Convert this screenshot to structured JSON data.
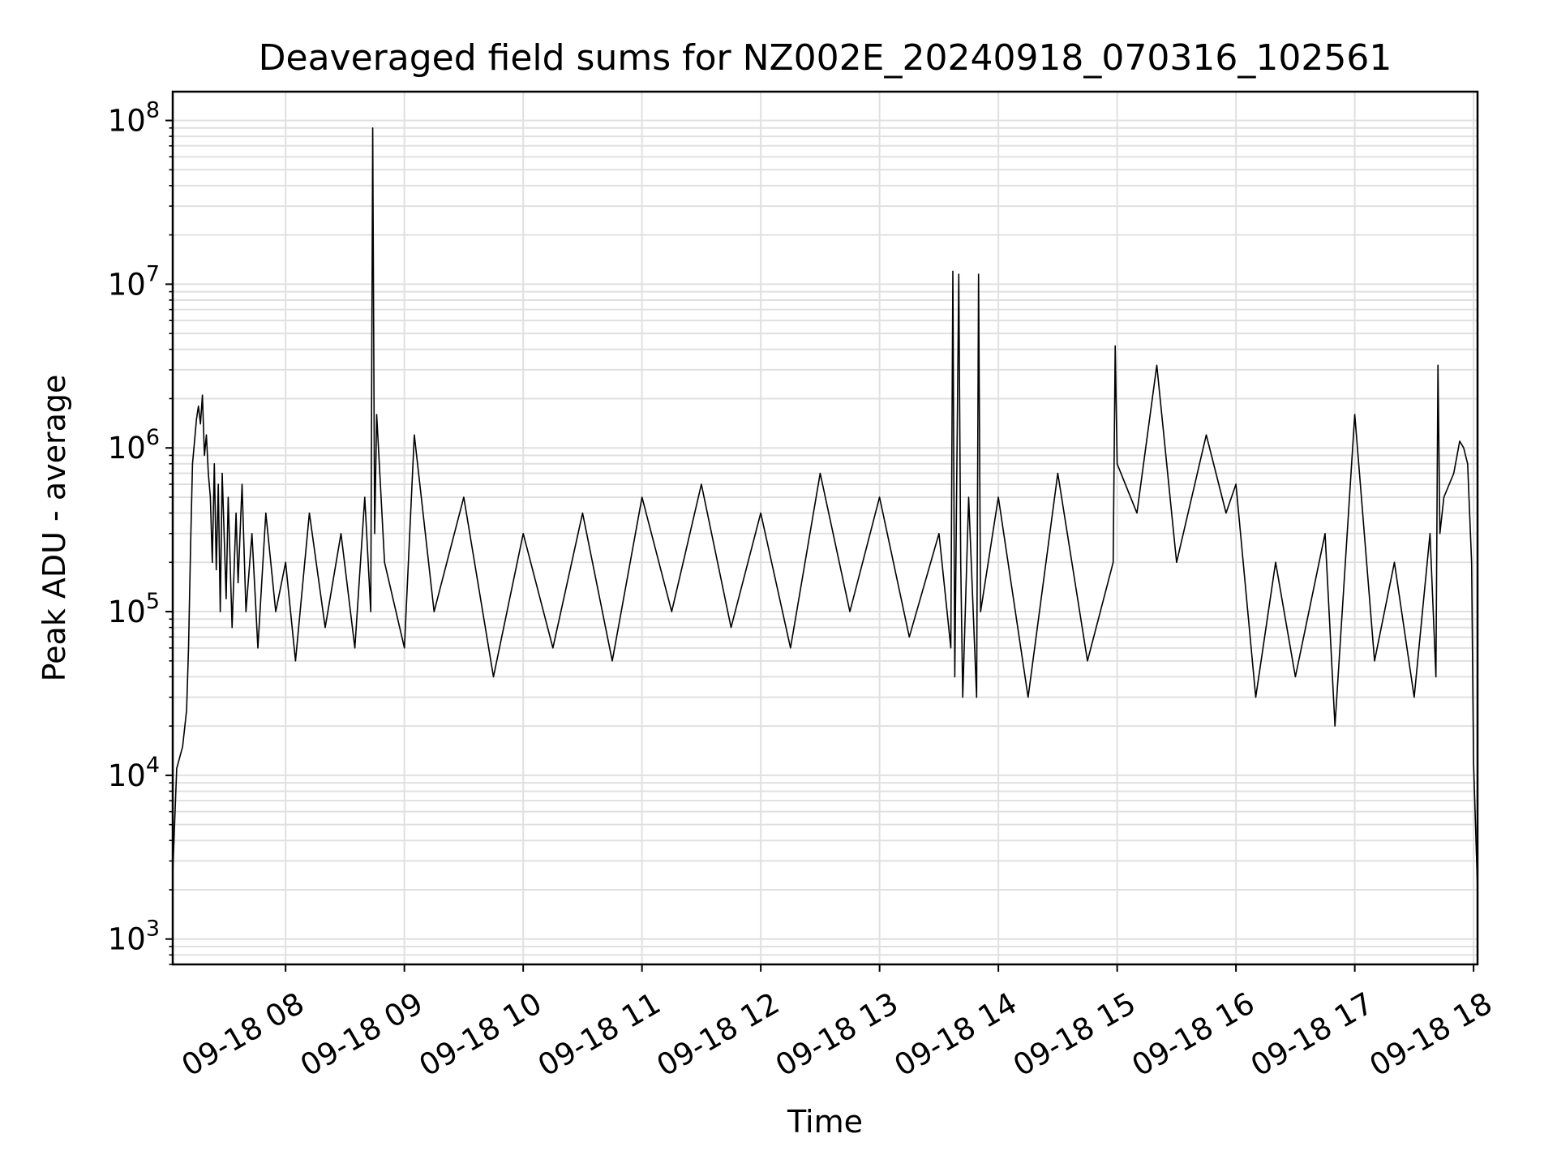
{
  "chart_data": {
    "type": "line",
    "title": "Deaveraged field sums for NZ002E_20240918_070316_102561",
    "xlabel": "Time",
    "ylabel": "Peak ADU - average",
    "yscale": "log",
    "ylim": [
      700,
      150000000
    ],
    "xlim": [
      "2024-09-18 07:03",
      "2024-09-18 18:02"
    ],
    "grid": true,
    "line_color": "#000000",
    "grid_color": "#e0e0e0",
    "x_ticks": [
      {
        "value": "2024-09-18 08:00",
        "label": "09-18 08"
      },
      {
        "value": "2024-09-18 09:00",
        "label": "09-18 09"
      },
      {
        "value": "2024-09-18 10:00",
        "label": "09-18 10"
      },
      {
        "value": "2024-09-18 11:00",
        "label": "09-18 11"
      },
      {
        "value": "2024-09-18 12:00",
        "label": "09-18 12"
      },
      {
        "value": "2024-09-18 13:00",
        "label": "09-18 13"
      },
      {
        "value": "2024-09-18 14:00",
        "label": "09-18 14"
      },
      {
        "value": "2024-09-18 15:00",
        "label": "09-18 15"
      },
      {
        "value": "2024-09-18 16:00",
        "label": "09-18 16"
      },
      {
        "value": "2024-09-18 17:00",
        "label": "09-18 17"
      },
      {
        "value": "2024-09-18 18:00",
        "label": "09-18 18"
      }
    ],
    "y_ticks": [
      {
        "value": 1000,
        "base": "10",
        "exp": "3"
      },
      {
        "value": 10000,
        "base": "10",
        "exp": "4"
      },
      {
        "value": 100000,
        "base": "10",
        "exp": "5"
      },
      {
        "value": 1000000,
        "base": "10",
        "exp": "6"
      },
      {
        "value": 10000000,
        "base": "10",
        "exp": "7"
      },
      {
        "value": 100000000,
        "base": "10",
        "exp": "8"
      }
    ],
    "series": [
      {
        "x": [
          "2024-09-18 07:03",
          "2024-09-18 07:05",
          "2024-09-18 07:08",
          "2024-09-18 07:10",
          "2024-09-18 07:11",
          "2024-09-18 07:12",
          "2024-09-18 07:13",
          "2024-09-18 07:15",
          "2024-09-18 07:16",
          "2024-09-18 07:17",
          "2024-09-18 07:18",
          "2024-09-18 07:19",
          "2024-09-18 07:20",
          "2024-09-18 07:21",
          "2024-09-18 07:22",
          "2024-09-18 07:23",
          "2024-09-18 07:24",
          "2024-09-18 07:25",
          "2024-09-18 07:26",
          "2024-09-18 07:27",
          "2024-09-18 07:28",
          "2024-09-18 07:30",
          "2024-09-18 07:31",
          "2024-09-18 07:33",
          "2024-09-18 07:35",
          "2024-09-18 07:36",
          "2024-09-18 07:38",
          "2024-09-18 07:40",
          "2024-09-18 07:43",
          "2024-09-18 07:46",
          "2024-09-18 07:50",
          "2024-09-18 07:55",
          "2024-09-18 08:00",
          "2024-09-18 08:05",
          "2024-09-18 08:12",
          "2024-09-18 08:20",
          "2024-09-18 08:28",
          "2024-09-18 08:35",
          "2024-09-18 08:40",
          "2024-09-18 08:43",
          "2024-09-18 08:44",
          "2024-09-18 08:45",
          "2024-09-18 08:46",
          "2024-09-18 08:50",
          "2024-09-18 09:00",
          "2024-09-18 09:05",
          "2024-09-18 09:15",
          "2024-09-18 09:30",
          "2024-09-18 09:45",
          "2024-09-18 10:00",
          "2024-09-18 10:15",
          "2024-09-18 10:30",
          "2024-09-18 10:45",
          "2024-09-18 11:00",
          "2024-09-18 11:15",
          "2024-09-18 11:30",
          "2024-09-18 11:45",
          "2024-09-18 12:00",
          "2024-09-18 12:15",
          "2024-09-18 12:30",
          "2024-09-18 12:45",
          "2024-09-18 13:00",
          "2024-09-18 13:15",
          "2024-09-18 13:30",
          "2024-09-18 13:36",
          "2024-09-18 13:37",
          "2024-09-18 13:38",
          "2024-09-18 13:40",
          "2024-09-18 13:41",
          "2024-09-18 13:42",
          "2024-09-18 13:45",
          "2024-09-18 13:49",
          "2024-09-18 13:50",
          "2024-09-18 13:51",
          "2024-09-18 14:00",
          "2024-09-18 14:15",
          "2024-09-18 14:30",
          "2024-09-18 14:45",
          "2024-09-18 14:58",
          "2024-09-18 14:59",
          "2024-09-18 15:00",
          "2024-09-18 15:10",
          "2024-09-18 15:20",
          "2024-09-18 15:30",
          "2024-09-18 15:45",
          "2024-09-18 15:55",
          "2024-09-18 16:00",
          "2024-09-18 16:10",
          "2024-09-18 16:20",
          "2024-09-18 16:30",
          "2024-09-18 16:45",
          "2024-09-18 16:50",
          "2024-09-18 17:00",
          "2024-09-18 17:10",
          "2024-09-18 17:20",
          "2024-09-18 17:30",
          "2024-09-18 17:38",
          "2024-09-18 17:41",
          "2024-09-18 17:42",
          "2024-09-18 17:43",
          "2024-09-18 17:45",
          "2024-09-18 17:50",
          "2024-09-18 17:53",
          "2024-09-18 17:55",
          "2024-09-18 17:57",
          "2024-09-18 17:59",
          "2024-09-18 18:00",
          "2024-09-18 18:02"
        ],
        "y": [
          2500,
          11000,
          15000,
          25000,
          60000,
          250000,
          800000,
          1500000,
          1800000,
          1400000,
          2100000,
          900000,
          1200000,
          700000,
          500000,
          200000,
          800000,
          180000,
          600000,
          100000,
          700000,
          120000,
          500000,
          80000,
          400000,
          150000,
          600000,
          100000,
          300000,
          60000,
          400000,
          100000,
          200000,
          50000,
          400000,
          80000,
          300000,
          60000,
          500000,
          100000,
          90000000,
          300000,
          1600000,
          200000,
          60000,
          1200000,
          100000,
          500000,
          40000,
          300000,
          60000,
          400000,
          50000,
          500000,
          100000,
          600000,
          80000,
          400000,
          60000,
          700000,
          100000,
          500000,
          70000,
          300000,
          60000,
          12000000,
          40000,
          11500000,
          200000,
          30000,
          500000,
          30000,
          11500000,
          100000,
          500000,
          30000,
          700000,
          50000,
          200000,
          4200000,
          800000,
          400000,
          3200000,
          200000,
          1200000,
          400000,
          600000,
          30000,
          200000,
          40000,
          300000,
          20000,
          1600000,
          50000,
          200000,
          30000,
          300000,
          40000,
          3200000,
          300000,
          500000,
          700000,
          1100000,
          1000000,
          800000,
          200000,
          12000,
          2000
        ]
      }
    ]
  }
}
